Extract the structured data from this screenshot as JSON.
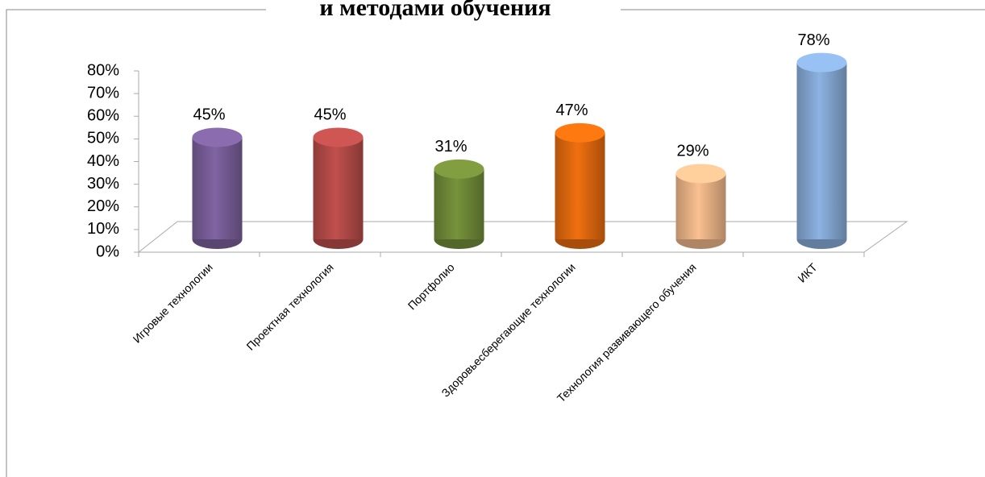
{
  "chart_data": {
    "type": "bar",
    "title": "и методами обучения",
    "categories": [
      "Игровые технологии",
      "Проектная технология",
      "Портфолио",
      "Здоровьесберегающие технологии",
      "Технология развивающего обучения",
      "ИКТ"
    ],
    "values": [
      45,
      45,
      31,
      47,
      29,
      78
    ],
    "value_labels": [
      "45%",
      "45%",
      "31%",
      "47%",
      "29%",
      "78%"
    ],
    "colors": [
      "#8064a2",
      "#c0504d",
      "#77933c",
      "#f07010",
      "#fac090",
      "#8db3e2"
    ],
    "ylim": [
      0,
      80
    ],
    "yticks": [
      {
        "value": 0,
        "label": "0%"
      },
      {
        "value": 10,
        "label": "10%"
      },
      {
        "value": 20,
        "label": "20%"
      },
      {
        "value": 30,
        "label": "30%"
      },
      {
        "value": 40,
        "label": "40%"
      },
      {
        "value": 50,
        "label": "50%"
      },
      {
        "value": 60,
        "label": "60%"
      },
      {
        "value": 70,
        "label": "70%"
      },
      {
        "value": 80,
        "label": "80%"
      }
    ]
  }
}
